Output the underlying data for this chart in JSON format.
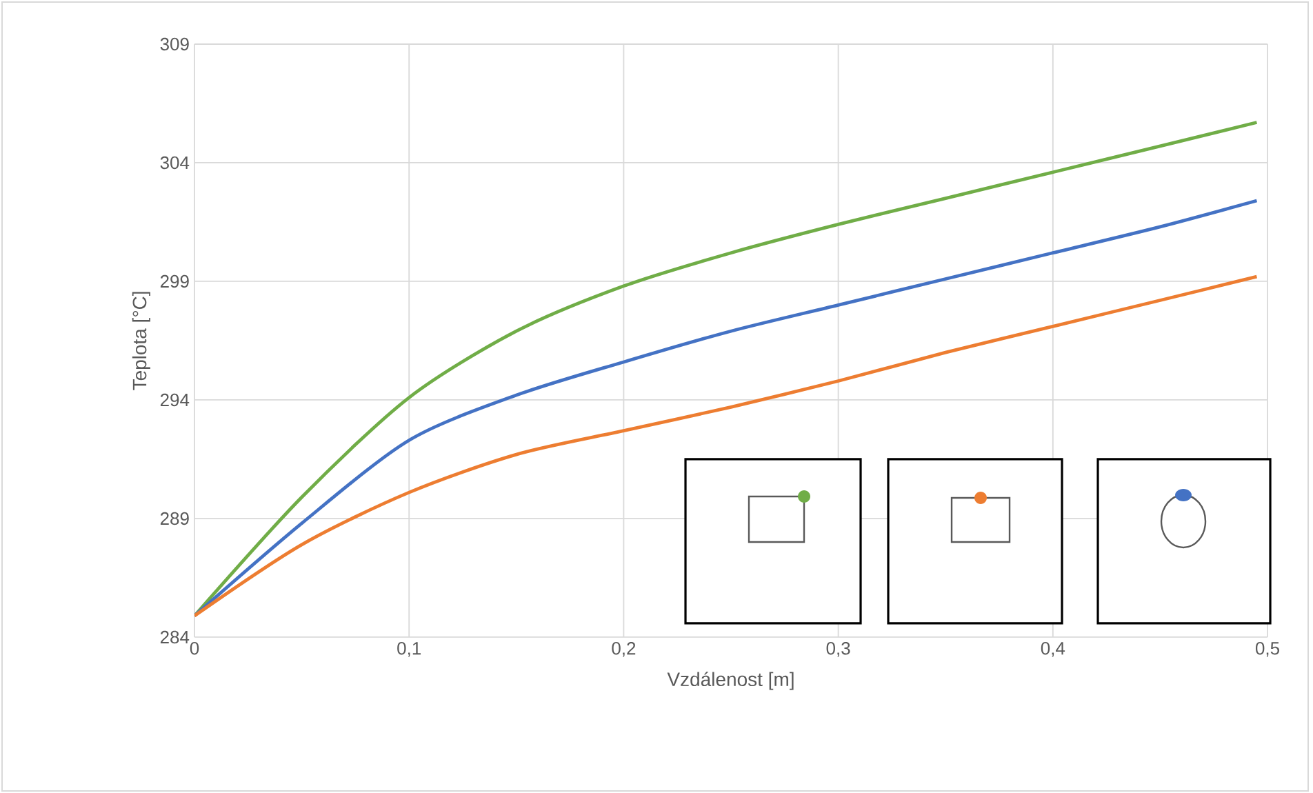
{
  "chart_data": {
    "type": "line",
    "xlabel": "Vzdálenost [m]",
    "ylabel": "Teplota [°C]",
    "xlim": [
      0,
      0.5
    ],
    "ylim": [
      284,
      309
    ],
    "xticks": [
      0,
      {
        "value": 0.1,
        "label": "0,1"
      },
      {
        "value": 0.2,
        "label": "0,2"
      },
      {
        "value": 0.3,
        "label": "0,3"
      },
      {
        "value": 0.4,
        "label": "0,4"
      },
      {
        "value": 0.5,
        "label": "0,5"
      }
    ],
    "yticks": [
      284,
      289,
      294,
      299,
      304,
      309
    ],
    "grid": true,
    "marker": "none",
    "line_style": "solid",
    "x": [
      0,
      0.05,
      0.1,
      0.15,
      0.2,
      0.25,
      0.3,
      0.35,
      0.4,
      0.45,
      0.495
    ],
    "series": [
      {
        "color": "#70ad47",
        "values": [
          284.9,
          289.9,
          294.1,
          296.9,
          298.8,
          300.2,
          301.4,
          302.5,
          303.6,
          304.7,
          305.7
        ]
      },
      {
        "color": "#4472c4",
        "values": [
          284.9,
          288.8,
          292.3,
          294.2,
          295.6,
          296.9,
          298.0,
          299.1,
          300.2,
          301.3,
          302.4
        ]
      },
      {
        "color": "#ed7d31",
        "values": [
          284.9,
          287.9,
          290.1,
          291.7,
          292.7,
          293.7,
          294.8,
          296.0,
          297.1,
          298.2,
          299.2
        ]
      }
    ]
  }
}
